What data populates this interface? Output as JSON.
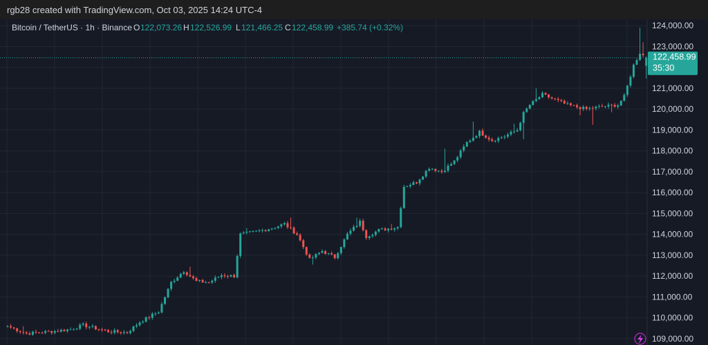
{
  "header": {
    "credit": "rgb28 created with TradingView.com, Oct 03, 2025 14:24 UTC-4"
  },
  "legend": {
    "symbol": "Bitcoin / TetherUS · 1h · Binance",
    "o_label": "O",
    "o_value": "122,073.26",
    "h_label": "H",
    "h_value": "122,526.99",
    "l_label": "L",
    "l_value": "121,466.25",
    "c_label": "C",
    "c_value": "122,458.99",
    "change": "+385.74 (+0.32%)"
  },
  "last_price": {
    "value": "122,458.99",
    "countdown": "35:30"
  },
  "colors": {
    "up": "#26a69a",
    "down": "#ef5350",
    "grid": "#232733",
    "text": "#d1d4dc",
    "background": "#161a25"
  },
  "icons": {
    "bottom_right": "lightning-icon"
  },
  "chart_data": {
    "type": "candlestick",
    "title": "Bitcoin / TetherUS · 1h · Binance",
    "ylim": [
      108700,
      124300
    ],
    "y_ticks": [
      109000,
      110000,
      111000,
      112000,
      113000,
      114000,
      115000,
      116000,
      117000,
      118000,
      119000,
      120000,
      121000,
      122000,
      123000,
      124000
    ],
    "y_tick_labels": [
      "109,000.00",
      "110,000.00",
      "111,000.00",
      "112,000.00",
      "113,000.00",
      "114,000.00",
      "115,000.00",
      "116,000.00",
      "117,000.00",
      "118,000.00",
      "119,000.00",
      "120,000.00",
      "121,000.00",
      "122,000.00",
      "123,000.00",
      "124,000.00"
    ],
    "grid": true,
    "anchors": [
      [
        0,
        109600
      ],
      [
        6,
        109250
      ],
      [
        14,
        109350
      ],
      [
        20,
        109450
      ],
      [
        24,
        109650
      ],
      [
        32,
        109350
      ],
      [
        38,
        109300
      ],
      [
        42,
        109800
      ],
      [
        48,
        110300
      ],
      [
        52,
        111700
      ],
      [
        56,
        112250
      ],
      [
        60,
        111750
      ],
      [
        64,
        111700
      ],
      [
        68,
        112050
      ],
      [
        72,
        112000
      ],
      [
        74,
        114000
      ],
      [
        78,
        114100
      ],
      [
        84,
        114300
      ],
      [
        88,
        114500
      ],
      [
        92,
        114000
      ],
      [
        96,
        112800
      ],
      [
        100,
        113200
      ],
      [
        104,
        112900
      ],
      [
        108,
        114000
      ],
      [
        112,
        114600
      ],
      [
        114,
        113900
      ],
      [
        118,
        114200
      ],
      [
        124,
        114350
      ],
      [
        126,
        116300
      ],
      [
        130,
        116500
      ],
      [
        134,
        117200
      ],
      [
        138,
        117000
      ],
      [
        142,
        117500
      ],
      [
        146,
        118400
      ],
      [
        150,
        118900
      ],
      [
        154,
        118500
      ],
      [
        158,
        118700
      ],
      [
        162,
        119000
      ],
      [
        164,
        119800
      ],
      [
        166,
        120200
      ],
      [
        170,
        120700
      ],
      [
        174,
        120450
      ],
      [
        178,
        120200
      ],
      [
        184,
        120000
      ],
      [
        188,
        120100
      ],
      [
        194,
        120200
      ],
      [
        196,
        120600
      ],
      [
        199,
        122100
      ],
      [
        201,
        122700
      ],
      [
        203,
        122459
      ]
    ],
    "spikes": [
      [
        5,
        109600,
        0
      ],
      [
        24,
        109800,
        0
      ],
      [
        58,
        112450,
        0
      ],
      [
        76,
        114300,
        0
      ],
      [
        90,
        114800,
        0
      ],
      [
        97,
        112550,
        1
      ],
      [
        111,
        114800,
        0
      ],
      [
        122,
        114500,
        0
      ],
      [
        128,
        116400,
        0
      ],
      [
        139,
        118100,
        0
      ],
      [
        148,
        119400,
        0
      ],
      [
        161,
        119300,
        0
      ],
      [
        164,
        118550,
        1
      ],
      [
        168,
        121000,
        0
      ],
      [
        182,
        119700,
        1
      ],
      [
        186,
        119250,
        1
      ],
      [
        192,
        119850,
        1
      ],
      [
        198,
        121000,
        0
      ],
      [
        201,
        123900,
        0
      ],
      [
        202,
        123200,
        0
      ],
      [
        203,
        121600,
        1
      ]
    ],
    "last_open": 122073.26,
    "last_high": 122526.99,
    "last_low": 121466.25,
    "last_close": 122458.99
  }
}
